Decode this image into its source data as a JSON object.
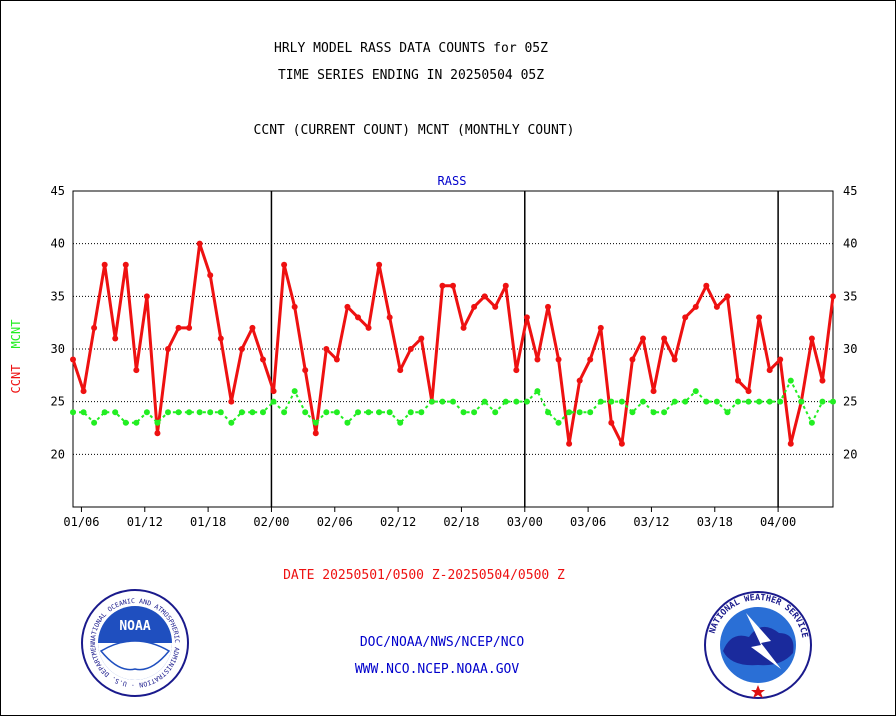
{
  "header": {
    "title_line1": "HRLY MODEL RASS DATA COUNTS for 05Z",
    "title_line2": "TIME SERIES ENDING IN 20250504 05Z",
    "subtitle": "CCNT (CURRENT COUNT) MCNT (MONTHLY COUNT)"
  },
  "footer": {
    "date_range": "DATE 20250501/0500 Z-20250504/0500 Z",
    "org_path": "DOC/NOAA/NWS/NCEP/NCO",
    "website": "WWW.NCO.NCEP.NOAA.GOV"
  },
  "logos": {
    "noaa_text": "NOAA",
    "noaa_ring": "NATIONAL OCEANIC AND ATMOSPHERIC ADMINISTRATION · U.S. DEPARTMENT OF COMMERCE",
    "nws_ring": "NATIONAL WEATHER SERVICE"
  },
  "colors": {
    "ccnt": "#ee1111",
    "mcnt": "#22ee22",
    "plot_label": "#0000cc",
    "date_text": "#ee1111",
    "footer_text": "#0000cc"
  },
  "chart_data": {
    "type": "line",
    "plot_label": "RASS",
    "ylabel_ccnt": "CCNT",
    "ylabel_mcnt": "MCNT",
    "ylim": [
      15,
      45
    ],
    "y_ticks": [
      20,
      25,
      30,
      35,
      40,
      45
    ],
    "x_tick_labels": [
      "01/06",
      "01/12",
      "01/18",
      "02/00",
      "02/06",
      "02/12",
      "02/18",
      "03/00",
      "03/06",
      "03/12",
      "03/18",
      "04/00"
    ],
    "day_separators": [
      "02/00",
      "03/00",
      "04/00"
    ],
    "grid": true,
    "series": [
      {
        "name": "CCNT",
        "values": [
          29,
          26,
          32,
          38,
          31,
          38,
          28,
          35,
          22,
          30,
          32,
          32,
          40,
          37,
          31,
          25,
          30,
          32,
          29,
          26,
          38,
          34,
          28,
          22,
          30,
          29,
          34,
          33,
          32,
          38,
          33,
          28,
          30,
          31,
          25,
          36,
          36,
          32,
          34,
          35,
          34,
          36,
          28,
          33,
          29,
          34,
          29,
          21,
          27,
          29,
          32,
          23,
          21,
          29,
          31,
          26,
          31,
          29,
          33,
          34,
          36,
          34,
          35,
          27,
          26,
          33,
          28,
          29,
          21,
          25,
          31,
          27,
          35
        ]
      },
      {
        "name": "MCNT",
        "values": [
          24,
          24,
          23,
          24,
          24,
          23,
          23,
          24,
          23,
          24,
          24,
          24,
          24,
          24,
          24,
          23,
          24,
          24,
          24,
          25,
          24,
          26,
          24,
          23,
          24,
          24,
          23,
          24,
          24,
          24,
          24,
          23,
          24,
          24,
          25,
          25,
          25,
          24,
          24,
          25,
          24,
          25,
          25,
          25,
          26,
          24,
          23,
          24,
          24,
          24,
          25,
          25,
          25,
          24,
          25,
          24,
          24,
          25,
          25,
          26,
          25,
          25,
          24,
          25,
          25,
          25,
          25,
          25,
          27,
          25,
          23,
          25,
          25
        ]
      }
    ]
  }
}
